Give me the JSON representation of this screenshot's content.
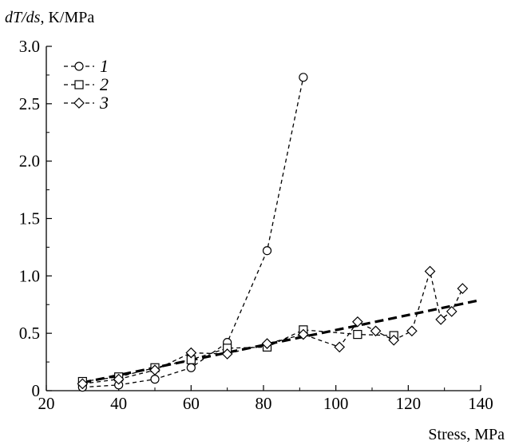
{
  "chart_data": {
    "type": "line",
    "ylabel_italic": "dT/ds",
    "ylabel_rest": ", K/MPa",
    "xlabel": "Stress, MPa",
    "xlim": [
      20,
      140
    ],
    "ylim": [
      0,
      3.0
    ],
    "x_ticks": [
      20,
      40,
      60,
      80,
      100,
      120,
      140
    ],
    "y_ticks": [
      0,
      0.5,
      1.0,
      1.5,
      2.0,
      2.5,
      3.0
    ],
    "y_tick_labels": [
      "0",
      "0.5",
      "1.0",
      "1.5",
      "2.0",
      "2.5",
      "3.0"
    ],
    "legend_position": "top-left",
    "series": [
      {
        "name": "1",
        "marker": "circle",
        "line": "dashed",
        "points": [
          [
            30,
            0.03
          ],
          [
            40,
            0.05
          ],
          [
            50,
            0.1
          ],
          [
            60,
            0.2
          ],
          [
            70,
            0.42
          ],
          [
            81,
            1.22
          ],
          [
            91,
            2.73
          ]
        ]
      },
      {
        "name": "2",
        "marker": "square",
        "line": "dashed",
        "points": [
          [
            30,
            0.08
          ],
          [
            40,
            0.12
          ],
          [
            50,
            0.2
          ],
          [
            60,
            0.27
          ],
          [
            70,
            0.37
          ],
          [
            81,
            0.38
          ],
          [
            91,
            0.53
          ],
          [
            106,
            0.49
          ],
          [
            116,
            0.48
          ]
        ]
      },
      {
        "name": "3",
        "marker": "diamond",
        "line": "dashed",
        "points": [
          [
            30,
            0.06
          ],
          [
            40,
            0.1
          ],
          [
            50,
            0.18
          ],
          [
            60,
            0.33
          ],
          [
            70,
            0.32
          ],
          [
            81,
            0.41
          ],
          [
            91,
            0.49
          ],
          [
            101,
            0.38
          ],
          [
            106,
            0.6
          ],
          [
            111,
            0.52
          ],
          [
            116,
            0.44
          ],
          [
            121,
            0.52
          ],
          [
            126,
            1.04
          ],
          [
            129,
            0.62
          ],
          [
            132,
            0.69
          ],
          [
            135,
            0.89
          ]
        ]
      }
    ],
    "trend_line": {
      "style": "thick-dashed",
      "points": [
        [
          30,
          0.07
        ],
        [
          140,
          0.79
        ]
      ]
    }
  }
}
